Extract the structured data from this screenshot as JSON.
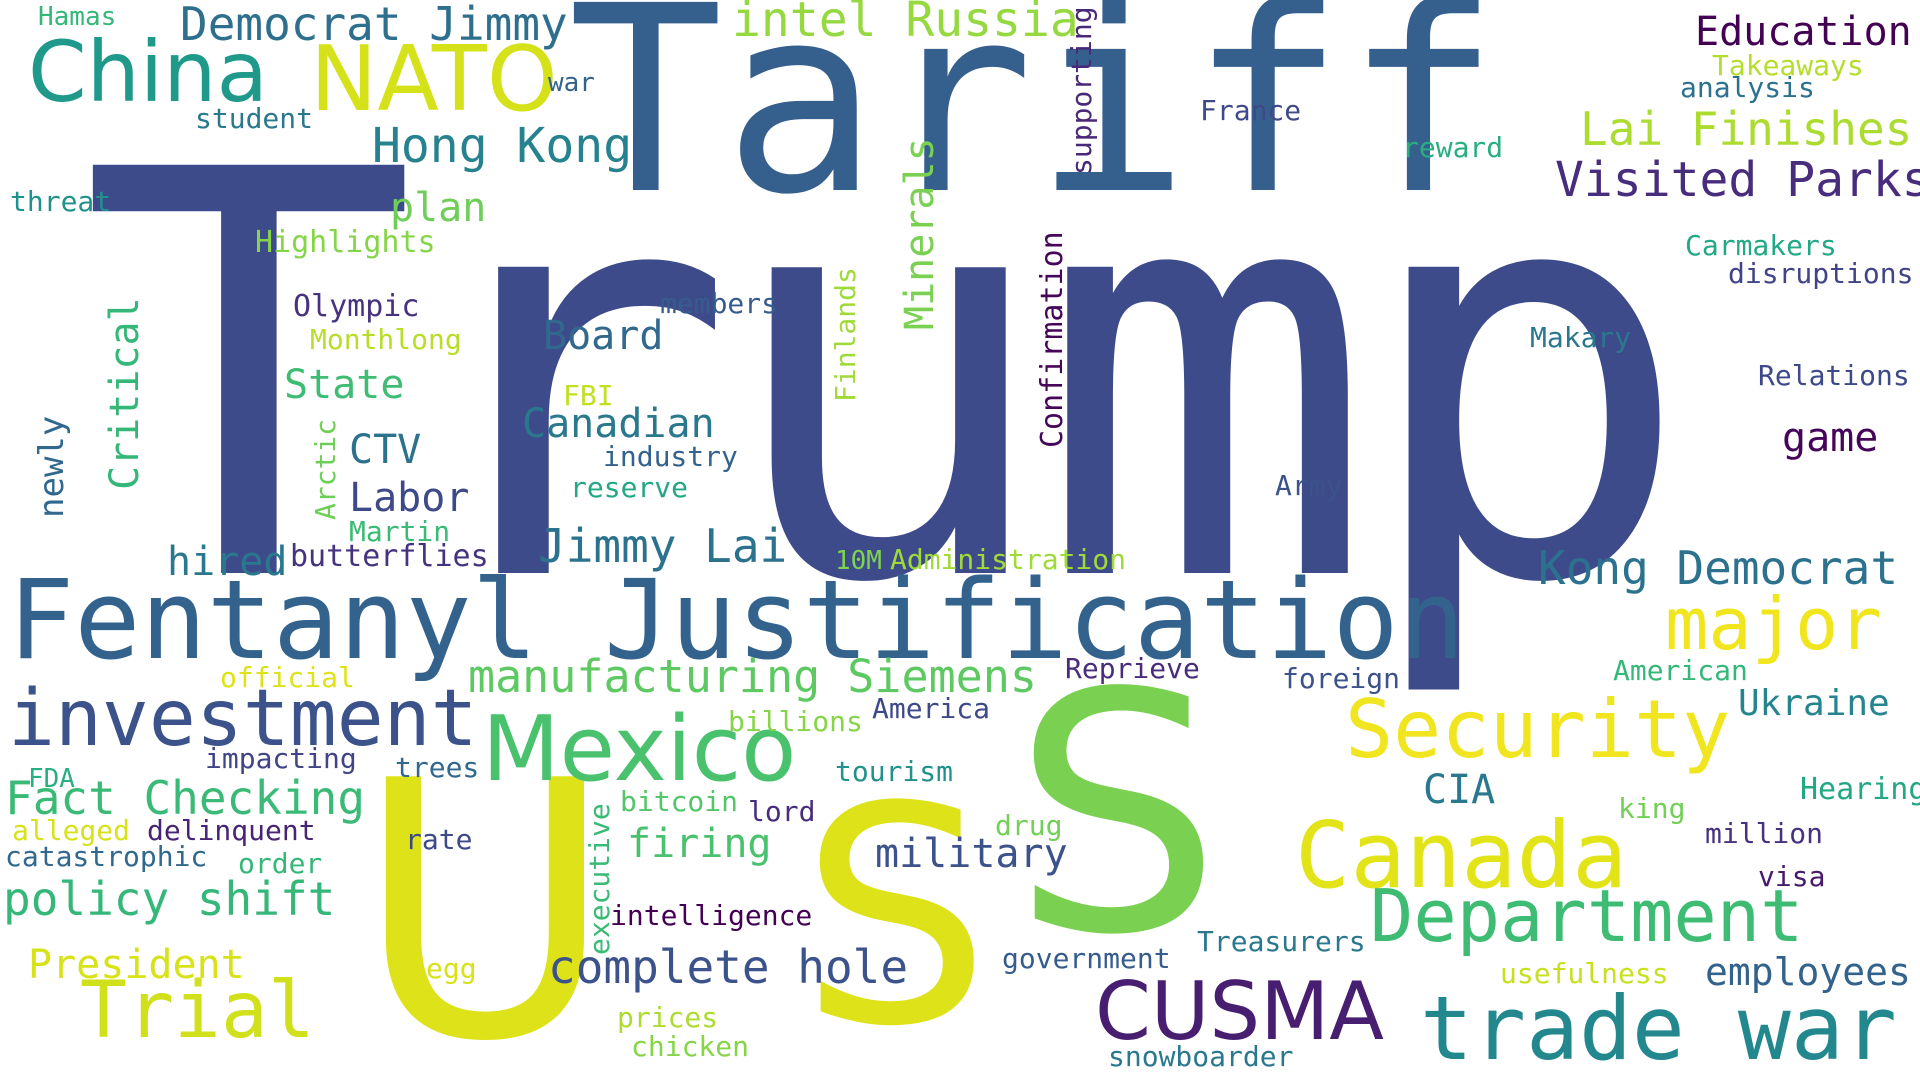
{
  "words": [
    {
      "text": "Trump",
      "color": "#3e4b8a",
      "icon": ""
    },
    {
      "text": "Tariff",
      "color": "#355f8d"
    },
    {
      "text": "U",
      "color": "#dde318"
    },
    {
      "text": "S",
      "color": "#dde318"
    },
    {
      "text": "S",
      "color": "#7ad151"
    },
    {
      "text": "Fentanyl Justification",
      "color": "#33638d"
    },
    {
      "text": "investment",
      "color": "#3b528b"
    },
    {
      "text": "Mexico",
      "color": "#4ac16d"
    },
    {
      "text": "Security",
      "color": "#f0e51e"
    },
    {
      "text": "Canada",
      "color": "#e2e418"
    },
    {
      "text": "Department",
      "color": "#3fbc73"
    },
    {
      "text": "trade war",
      "color": "#23888e"
    },
    {
      "text": "CUSMA",
      "color": "#481f70"
    },
    {
      "text": "Trial",
      "color": "#d0e11c"
    },
    {
      "text": "major",
      "color": "#f1e51d"
    },
    {
      "text": "China",
      "color": "#1f9a8a"
    },
    {
      "text": "NATO",
      "color": "#d5e21a"
    },
    {
      "text": "Democrat Jimmy",
      "color": "#2e6f8e"
    },
    {
      "text": "intel Russia",
      "color": "#95d840"
    },
    {
      "text": "Hong Kong",
      "color": "#26828e"
    },
    {
      "text": "Education",
      "color": "#440154"
    },
    {
      "text": "Takeaways",
      "color": "#b5de2b"
    },
    {
      "text": "analysis",
      "color": "#2c728e"
    },
    {
      "text": "Lai Finishes",
      "color": "#addc30"
    },
    {
      "text": "Visited Parks",
      "color": "#472d7b"
    },
    {
      "text": "war",
      "color": "#33638d"
    },
    {
      "text": "student",
      "color": "#2a788e"
    },
    {
      "text": "France",
      "color": "#3e4989"
    },
    {
      "text": "reward",
      "color": "#29af7f"
    },
    {
      "text": "supporting",
      "color": "#482878"
    },
    {
      "text": "Hamas",
      "color": "#35b779"
    },
    {
      "text": "threat",
      "color": "#21918c"
    },
    {
      "text": "plan",
      "color": "#6ece58"
    },
    {
      "text": "Highlights",
      "color": "#86d549"
    },
    {
      "text": "Carmakers",
      "color": "#22a884"
    },
    {
      "text": "disruptions",
      "color": "#414487"
    },
    {
      "text": "Olympic",
      "color": "#46327e"
    },
    {
      "text": "Monthlong",
      "color": "#b8de29"
    },
    {
      "text": "members",
      "color": "#365c8d"
    },
    {
      "text": "Minerals",
      "color": "#7ad151"
    },
    {
      "text": "Finlands",
      "color": "#a0da39"
    },
    {
      "text": "Confirmation",
      "color": "#450559"
    },
    {
      "text": "Board",
      "color": "#31688e"
    },
    {
      "text": "Makary",
      "color": "#2a788e"
    },
    {
      "text": "Critical",
      "color": "#35b779"
    },
    {
      "text": "newly",
      "color": "#31688e"
    },
    {
      "text": "State",
      "color": "#3fbc73"
    },
    {
      "text": "FBI",
      "color": "#c2df23"
    },
    {
      "text": "Relations",
      "color": "#3e4989"
    },
    {
      "text": "Canadian",
      "color": "#2a788e"
    },
    {
      "text": "CTV",
      "color": "#2c728e"
    },
    {
      "text": "industry",
      "color": "#33638d"
    },
    {
      "text": "game",
      "color": "#450559"
    },
    {
      "text": "Arctic",
      "color": "#6ece58"
    },
    {
      "text": "Labor",
      "color": "#3e4989"
    },
    {
      "text": "reserve",
      "color": "#22a884"
    },
    {
      "text": "Army",
      "color": "#3b528b"
    },
    {
      "text": "Martin",
      "color": "#3aba76"
    },
    {
      "text": "Jimmy Lai",
      "color": "#2c728e"
    },
    {
      "text": "hired",
      "color": "#2a788e"
    },
    {
      "text": "butterflies",
      "color": "#46337f"
    },
    {
      "text": "10M",
      "color": "#7fd34e"
    },
    {
      "text": "Administration",
      "color": "#a0da39"
    },
    {
      "text": "Kong Democrat",
      "color": "#2c728e"
    },
    {
      "text": "manufacturing Siemens",
      "color": "#5ec962"
    },
    {
      "text": "official",
      "color": "#dde318"
    },
    {
      "text": "Reprieve",
      "color": "#472d7b"
    },
    {
      "text": "foreign",
      "color": "#3b528b"
    },
    {
      "text": "American",
      "color": "#35b779"
    },
    {
      "text": "billions",
      "color": "#86d549"
    },
    {
      "text": "America",
      "color": "#3e4989"
    },
    {
      "text": "Ukraine",
      "color": "#25848e"
    },
    {
      "text": "impacting",
      "color": "#414487"
    },
    {
      "text": "trees",
      "color": "#31688e"
    },
    {
      "text": "tourism",
      "color": "#21918c"
    },
    {
      "text": "FDA",
      "color": "#29af7f"
    },
    {
      "text": "Fact Checking",
      "color": "#3aba76"
    },
    {
      "text": "CIA",
      "color": "#2a788e"
    },
    {
      "text": "Hearing",
      "color": "#22a884"
    },
    {
      "text": "bitcoin",
      "color": "#54c568"
    },
    {
      "text": "lord",
      "color": "#472d7b"
    },
    {
      "text": "king",
      "color": "#73d056"
    },
    {
      "text": "alleged",
      "color": "#d8e219"
    },
    {
      "text": "delinquent",
      "color": "#482475"
    },
    {
      "text": "executive",
      "color": "#3aba76"
    },
    {
      "text": "drug",
      "color": "#73d056"
    },
    {
      "text": "million",
      "color": "#46327e"
    },
    {
      "text": "catastrophic",
      "color": "#31688e"
    },
    {
      "text": "order",
      "color": "#35b779"
    },
    {
      "text": "rate",
      "color": "#3e4989"
    },
    {
      "text": "firing",
      "color": "#4ac16d"
    },
    {
      "text": "military",
      "color": "#3b528b"
    },
    {
      "text": "visa",
      "color": "#481a6c"
    },
    {
      "text": "policy shift",
      "color": "#35b779"
    },
    {
      "text": "intelligence",
      "color": "#440154"
    },
    {
      "text": "President",
      "color": "#d8e219"
    },
    {
      "text": "egg",
      "color": "#d8e219"
    },
    {
      "text": "complete hole",
      "color": "#3b528b"
    },
    {
      "text": "government",
      "color": "#365c8d"
    },
    {
      "text": "Treasurers",
      "color": "#2a788e"
    },
    {
      "text": "usefulness",
      "color": "#c8e020"
    },
    {
      "text": "employees",
      "color": "#33638d"
    },
    {
      "text": "prices",
      "color": "#addc30"
    },
    {
      "text": "chicken",
      "color": "#86d549"
    },
    {
      "text": "snowboarder",
      "color": "#2a788e"
    }
  ]
}
